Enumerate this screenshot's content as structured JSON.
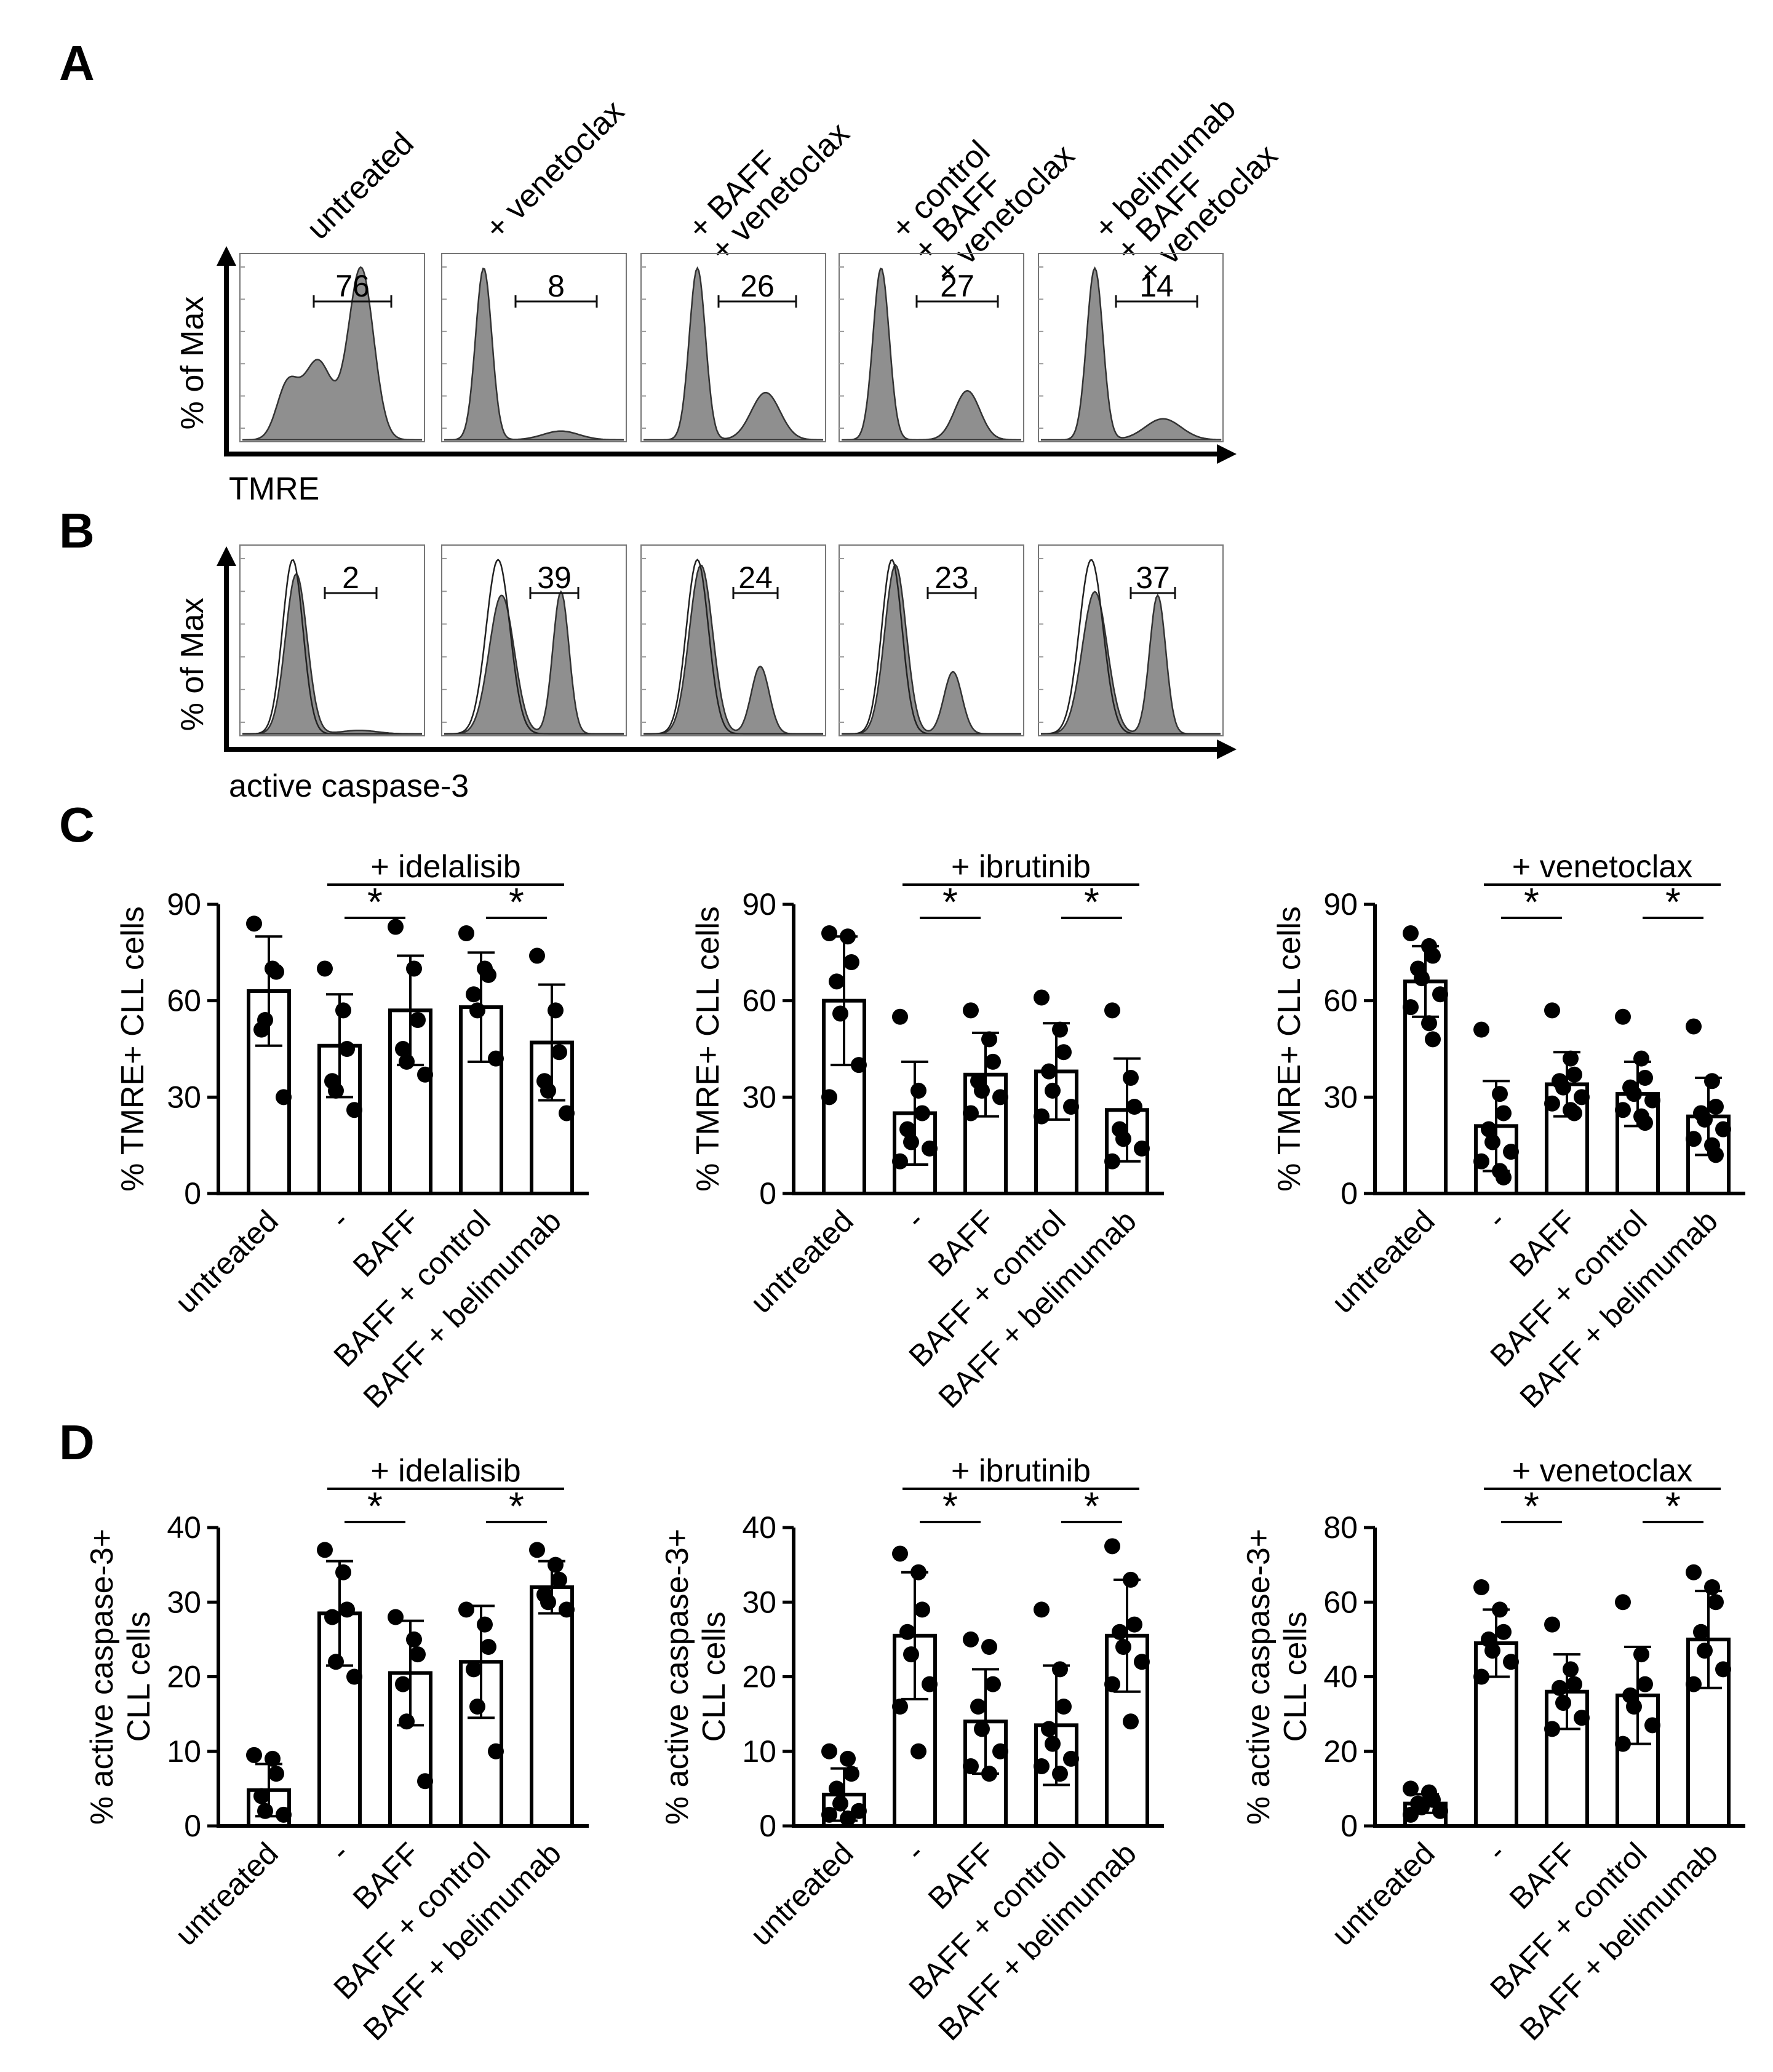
{
  "panels": {
    "A": {
      "letter": "A",
      "y_axis_label": "% of Max",
      "x_axis_label": "TMRE",
      "conditions": [
        {
          "lines": [
            "untreated"
          ]
        },
        {
          "lines": [
            "+ venetoclax"
          ]
        },
        {
          "lines": [
            "+ venetoclax",
            "+ BAFF"
          ]
        },
        {
          "lines": [
            "+ venetoclax",
            "+ BAFF",
            "+ control"
          ]
        },
        {
          "lines": [
            "+ venetoclax",
            "+ BAFF",
            "+ belimumab"
          ]
        }
      ],
      "gate_values": [
        "76",
        "8",
        "26",
        "27",
        "14"
      ]
    },
    "B": {
      "letter": "B",
      "y_axis_label": "% of Max",
      "x_axis_label": "active caspase-3",
      "gate_values": [
        "2",
        "39",
        "24",
        "23",
        "37"
      ]
    },
    "C": {
      "letter": "C"
    },
    "D": {
      "letter": "D"
    }
  },
  "chart_data": [
    {
      "id": "C1",
      "type": "bar",
      "panel": "C",
      "title": "+ idelalisib",
      "ylabel": "% TMRE+ CLL cells",
      "ylim": [
        0,
        90
      ],
      "yticks": [
        "0",
        "30",
        "60",
        "90"
      ],
      "categories": [
        "untreated",
        "-",
        "BAFF",
        "BAFF + control",
        "BAFF + belimumab"
      ],
      "means": [
        63,
        46,
        57,
        58,
        47
      ],
      "sd": [
        17,
        16,
        17,
        17,
        18
      ],
      "points": [
        [
          84,
          70,
          69,
          51,
          54,
          30
        ],
        [
          70,
          57,
          45,
          35,
          32,
          26
        ],
        [
          83,
          70,
          54,
          45,
          41,
          37
        ],
        [
          81,
          70,
          68,
          62,
          57,
          42
        ],
        [
          74,
          57,
          44,
          35,
          32,
          25
        ]
      ],
      "significance": [
        {
          "from": "-",
          "to": "BAFF",
          "label": "*"
        },
        {
          "from": "BAFF + control",
          "to": "BAFF + belimumab",
          "label": "*"
        }
      ]
    },
    {
      "id": "C2",
      "type": "bar",
      "panel": "C",
      "title": "+ ibrutinib",
      "ylabel": "% TMRE+ CLL cells",
      "ylim": [
        0,
        90
      ],
      "yticks": [
        "0",
        "30",
        "60",
        "90"
      ],
      "categories": [
        "untreated",
        "-",
        "BAFF",
        "BAFF + control",
        "BAFF + belimumab"
      ],
      "means": [
        60,
        25,
        37,
        38,
        26
      ],
      "sd": [
        20,
        16,
        13,
        15,
        16
      ],
      "points": [
        [
          81,
          80,
          72,
          66,
          56,
          40,
          30
        ],
        [
          55,
          32,
          25,
          20,
          16,
          14,
          10
        ],
        [
          57,
          48,
          41,
          35,
          32,
          30,
          25
        ],
        [
          61,
          51,
          44,
          38,
          32,
          27,
          24
        ],
        [
          57,
          36,
          27,
          20,
          17,
          14,
          10
        ]
      ],
      "significance": [
        {
          "from": "-",
          "to": "BAFF",
          "label": "*"
        },
        {
          "from": "BAFF + control",
          "to": "BAFF + belimumab",
          "label": "*"
        }
      ]
    },
    {
      "id": "C3",
      "type": "bar",
      "panel": "C",
      "title": "+ venetoclax",
      "ylabel": "% TMRE+ CLL cells",
      "ylim": [
        0,
        90
      ],
      "yticks": [
        "0",
        "30",
        "60",
        "90"
      ],
      "categories": [
        "untreated",
        "-",
        "BAFF",
        "BAFF + control",
        "BAFF + belimumab"
      ],
      "means": [
        66,
        21,
        34,
        31,
        24
      ],
      "sd": [
        11,
        14,
        10,
        10,
        12
      ],
      "points": [
        [
          81,
          77,
          74,
          70,
          67,
          62,
          58,
          53,
          48
        ],
        [
          51,
          31,
          25,
          20,
          16,
          13,
          10,
          7,
          5
        ],
        [
          57,
          42,
          37,
          35,
          33,
          30,
          28,
          26,
          25
        ],
        [
          55,
          42,
          36,
          33,
          31,
          29,
          26,
          24,
          22
        ],
        [
          52,
          35,
          27,
          25,
          23,
          20,
          17,
          15,
          12
        ]
      ],
      "significance": [
        {
          "from": "-",
          "to": "BAFF",
          "label": "*"
        },
        {
          "from": "BAFF + control",
          "to": "BAFF + belimumab",
          "label": "*"
        }
      ]
    },
    {
      "id": "D1",
      "type": "bar",
      "panel": "D",
      "title": "+ idelalisib",
      "ylabel_lines": [
        "% active caspase-3+",
        "CLL cells"
      ],
      "ylim": [
        0,
        40
      ],
      "yticks": [
        "0",
        "10",
        "20",
        "30",
        "40"
      ],
      "categories": [
        "untreated",
        "-",
        "BAFF",
        "BAFF + control",
        "BAFF + belimumab"
      ],
      "means": [
        4.8,
        28.5,
        20.5,
        22,
        32
      ],
      "sd": [
        3.5,
        7,
        7,
        7.5,
        3.5
      ],
      "points": [
        [
          9.5,
          9,
          7,
          4,
          2,
          1.5
        ],
        [
          37,
          34,
          29,
          28,
          22,
          20
        ],
        [
          28,
          25,
          23,
          19,
          14,
          6
        ],
        [
          29,
          27,
          24,
          21,
          16,
          10
        ],
        [
          37,
          35,
          33,
          31,
          30,
          29
        ]
      ],
      "significance": [
        {
          "from": "-",
          "to": "BAFF",
          "label": "*"
        },
        {
          "from": "BAFF + control",
          "to": "BAFF + belimumab",
          "label": "*"
        }
      ]
    },
    {
      "id": "D2",
      "type": "bar",
      "panel": "D",
      "title": "+ ibrutinib",
      "ylabel_lines": [
        "% active caspase-3+",
        "CLL cells"
      ],
      "ylim": [
        0,
        40
      ],
      "yticks": [
        "0",
        "10",
        "20",
        "30",
        "40"
      ],
      "categories": [
        "untreated",
        "-",
        "BAFF",
        "BAFF + control",
        "BAFF + belimumab"
      ],
      "means": [
        4.2,
        25.5,
        14,
        13.5,
        25.5
      ],
      "sd": [
        3.5,
        8.5,
        7,
        8,
        7.5
      ],
      "points": [
        [
          10,
          9,
          7,
          5,
          3,
          2,
          1.5,
          1
        ],
        [
          36.5,
          34,
          29,
          26,
          23,
          19,
          16,
          10
        ],
        [
          25,
          24,
          19,
          16,
          13,
          10,
          8,
          7
        ],
        [
          29,
          21,
          16,
          13,
          11,
          9,
          8,
          7
        ],
        [
          37.5,
          33,
          27,
          26,
          24,
          22,
          19,
          14
        ]
      ],
      "significance": [
        {
          "from": "-",
          "to": "BAFF",
          "label": "*"
        },
        {
          "from": "BAFF + control",
          "to": "BAFF + belimumab",
          "label": "*"
        }
      ]
    },
    {
      "id": "D3",
      "type": "bar",
      "panel": "D",
      "title": "+ venetoclax",
      "ylabel_lines": [
        "% active caspase-3+",
        "CLL cells"
      ],
      "ylim": [
        0,
        80
      ],
      "yticks": [
        "0",
        "20",
        "40",
        "60",
        "80"
      ],
      "categories": [
        "untreated",
        "-",
        "BAFF",
        "BAFF + control",
        "BAFF + belimumab"
      ],
      "means": [
        6,
        49,
        36,
        35,
        50
      ],
      "sd": [
        2.5,
        9,
        10,
        13,
        13
      ],
      "points": [
        [
          10,
          9,
          7,
          6,
          5,
          4,
          3
        ],
        [
          64,
          58,
          52,
          50,
          47,
          44,
          40
        ],
        [
          54,
          42,
          38,
          37,
          33,
          29,
          26
        ],
        [
          60,
          46,
          38,
          35,
          32,
          27,
          22
        ],
        [
          68,
          64,
          60,
          52,
          47,
          42,
          38
        ]
      ],
      "significance": [
        {
          "from": "-",
          "to": "BAFF",
          "label": "*"
        },
        {
          "from": "BAFF + control",
          "to": "BAFF + belimumab",
          "label": "*"
        }
      ]
    }
  ]
}
